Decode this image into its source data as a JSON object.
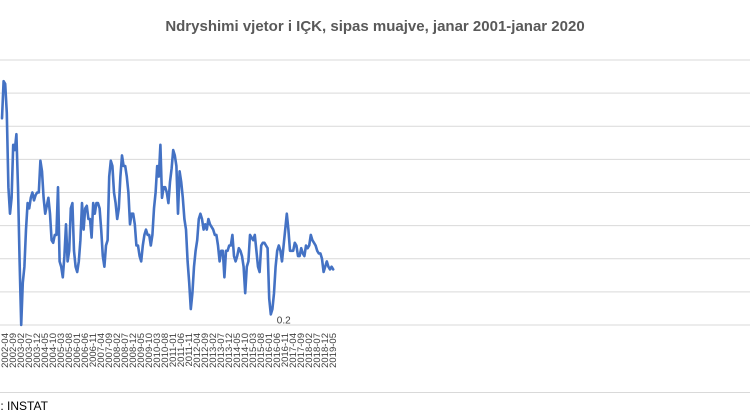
{
  "chart_data": {
    "type": "line",
    "title": "Ndryshimi vjetor i IÇK, sipas muajve, janar 2001-janar 2020",
    "xlabel": "",
    "ylabel": "",
    "ylim": [
      0,
      5
    ],
    "grid": true,
    "legend": "none",
    "line_color": "#4472c4",
    "tick_labels": [
      "2002-04",
      "2002-09",
      "2003-02",
      "2003-07",
      "2003-12",
      "2004-05",
      "2004-10",
      "2005-03",
      "2005-08",
      "2006-01",
      "2006-06",
      "2006-11",
      "2007-04",
      "2007-09",
      "2008-02",
      "2008-07",
      "2008-12",
      "2009-05",
      "2009-10",
      "2010-03",
      "2010-08",
      "2011-01",
      "2011-06",
      "2011-11",
      "2012-04",
      "2012-09",
      "2013-02",
      "2013-07",
      "2013-12",
      "2014-05",
      "2014-10",
      "2015-03",
      "2015-08",
      "2016-01",
      "2016-06",
      "2016-11",
      "2017-04",
      "2017-09",
      "2018-02",
      "2018-07",
      "2018-12",
      "2019-05"
    ],
    "series": [
      {
        "name": "",
        "start": "2002-02",
        "values": [
          3.9,
          4.6,
          4.55,
          4.0,
          2.6,
          2.1,
          2.4,
          3.4,
          3.3,
          3.6,
          2.6,
          1.2,
          0.0,
          0.8,
          1.1,
          1.8,
          2.3,
          2.2,
          2.4,
          2.5,
          2.35,
          2.45,
          2.5,
          2.5,
          3.1,
          2.9,
          2.4,
          2.1,
          2.25,
          2.4,
          2.1,
          1.6,
          1.55,
          1.7,
          1.7,
          2.6,
          1.2,
          1.1,
          0.9,
          1.3,
          1.9,
          1.2,
          1.4,
          2.2,
          2.3,
          1.4,
          1.1,
          1.0,
          1.2,
          1.6,
          2.3,
          1.8,
          2.2,
          2.25,
          2.0,
          2.0,
          1.65,
          2.3,
          2.1,
          2.3,
          2.3,
          2.2,
          1.8,
          1.3,
          1.1,
          1.5,
          1.6,
          2.8,
          3.1,
          3.0,
          2.5,
          2.3,
          2.0,
          2.2,
          2.8,
          3.2,
          3.0,
          3.0,
          2.8,
          2.5,
          1.9,
          2.1,
          2.1,
          1.9,
          1.5,
          1.5,
          1.3,
          1.2,
          1.5,
          1.7,
          1.8,
          1.7,
          1.7,
          1.5,
          1.7,
          2.2,
          2.5,
          3.0,
          2.8,
          3.4,
          2.4,
          2.6,
          2.6,
          2.5,
          2.3,
          2.7,
          2.95,
          3.3,
          3.2,
          3.0,
          2.1,
          2.9,
          2.7,
          2.4,
          2.0,
          1.8,
          1.2,
          0.8,
          0.3,
          0.6,
          1.1,
          1.4,
          1.6,
          2.0,
          2.1,
          2.0,
          1.8,
          1.9,
          1.8,
          2.0,
          1.9,
          1.85,
          1.8,
          1.7,
          1.7,
          1.5,
          1.2,
          1.4,
          1.4,
          0.9,
          1.4,
          1.4,
          1.5,
          1.5,
          1.7,
          1.3,
          1.2,
          1.3,
          1.45,
          1.4,
          1.3,
          1.1,
          0.6,
          1.1,
          1.2,
          1.7,
          1.65,
          1.6,
          1.7,
          1.4,
          1.1,
          1.0,
          1.5,
          1.55,
          1.55,
          1.5,
          1.45,
          0.5,
          0.2,
          0.3,
          0.6,
          1.1,
          1.4,
          1.5,
          1.4,
          1.2,
          1.5,
          1.8,
          2.1,
          1.8,
          1.4,
          1.4,
          1.4,
          1.55,
          1.5,
          1.3,
          1.3,
          1.45,
          1.35,
          1.3,
          1.5,
          1.45,
          1.5,
          1.7,
          1.6,
          1.55,
          1.5,
          1.4,
          1.35,
          1.35,
          1.25,
          1.0,
          1.1,
          1.2,
          1.1,
          1.05,
          1.1,
          1.05
        ]
      }
    ],
    "annotations": [
      {
        "label": "0.2"
      }
    ]
  },
  "source": {
    "text": "ni: INSTAT"
  }
}
